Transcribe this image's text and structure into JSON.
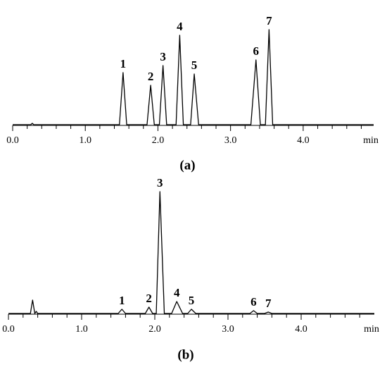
{
  "chart_data": [
    {
      "type": "line",
      "label": "(a)",
      "x_label": "min",
      "xlim": [
        0,
        4.97
      ],
      "ylim": [
        0,
        140
      ],
      "xticks": [
        {
          "value": 0,
          "label": "0.0"
        },
        {
          "value": 1,
          "label": "1.0"
        },
        {
          "value": 2,
          "label": "2.0"
        },
        {
          "value": 3,
          "label": "3.0"
        },
        {
          "value": 4,
          "label": "4.0"
        }
      ],
      "minor_xticks": [
        0.2,
        0.4,
        0.6,
        0.8,
        1.2,
        1.4,
        1.6,
        1.8,
        2.2,
        2.4,
        2.6,
        2.8,
        3.2,
        3.4,
        3.6,
        3.8,
        4.2,
        4.4,
        4.6,
        4.8
      ],
      "x": [
        0,
        0.25,
        0.27,
        0.29,
        1.47,
        1.52,
        1.57,
        1.85,
        1.9,
        1.95,
        2.02,
        2.07,
        2.12,
        2.25,
        2.3,
        2.35,
        2.45,
        2.5,
        2.56,
        3.28,
        3.35,
        3.41,
        3.48,
        3.53,
        3.58,
        4.97
      ],
      "series": [
        {
          "color": "#000000",
          "values": [
            0,
            0,
            2,
            0,
            0,
            74,
            0,
            0,
            56,
            0,
            0,
            84,
            0,
            0,
            127,
            0,
            0,
            72,
            0,
            0,
            92,
            0,
            0,
            135,
            0,
            0
          ]
        }
      ],
      "annotations": [
        {
          "text": "1",
          "x": 1.52,
          "y": 74
        },
        {
          "text": "2",
          "x": 1.9,
          "y": 56
        },
        {
          "text": "3",
          "x": 2.07,
          "y": 84
        },
        {
          "text": "4",
          "x": 2.3,
          "y": 127
        },
        {
          "text": "5",
          "x": 2.5,
          "y": 72
        },
        {
          "text": "6",
          "x": 3.35,
          "y": 92
        },
        {
          "text": "7",
          "x": 3.53,
          "y": 135
        }
      ]
    },
    {
      "type": "line",
      "label": "(b)",
      "x_label": "min",
      "xlim": [
        0,
        5.0
      ],
      "ylim": [
        0,
        180
      ],
      "xticks": [
        {
          "value": 0,
          "label": "0.0"
        },
        {
          "value": 1,
          "label": "1.0"
        },
        {
          "value": 2,
          "label": "2.0"
        },
        {
          "value": 3,
          "label": "3.0"
        },
        {
          "value": 4,
          "label": "4.0"
        }
      ],
      "minor_xticks": [
        0.2,
        0.4,
        0.6,
        0.8,
        1.2,
        1.4,
        1.6,
        1.8,
        2.2,
        2.4,
        2.6,
        2.8,
        3.2,
        3.4,
        3.6,
        3.8,
        4.2,
        4.4,
        4.6,
        4.8
      ],
      "x": [
        0,
        0.3,
        0.33,
        0.36,
        0.38,
        0.4,
        1.5,
        1.55,
        1.6,
        1.87,
        1.92,
        1.97,
        2.02,
        2.07,
        2.13,
        2.23,
        2.3,
        2.38,
        2.45,
        2.5,
        2.56,
        3.3,
        3.35,
        3.4,
        3.5,
        3.55,
        3.6,
        5.0
      ],
      "series": [
        {
          "color": "#000000",
          "values": [
            0,
            0,
            19,
            0,
            3,
            0,
            0,
            6,
            0,
            0,
            9,
            0,
            0,
            173,
            0,
            0,
            17,
            0,
            0,
            6,
            0,
            0,
            4,
            0,
            0,
            2,
            0,
            0
          ]
        }
      ],
      "annotations": [
        {
          "text": "1",
          "x": 1.55,
          "y": 6
        },
        {
          "text": "2",
          "x": 1.92,
          "y": 9
        },
        {
          "text": "3",
          "x": 2.07,
          "y": 173
        },
        {
          "text": "4",
          "x": 2.3,
          "y": 17
        },
        {
          "text": "5",
          "x": 2.5,
          "y": 6
        },
        {
          "text": "6",
          "x": 3.35,
          "y": 4
        },
        {
          "text": "7",
          "x": 3.55,
          "y": 2
        }
      ]
    }
  ]
}
